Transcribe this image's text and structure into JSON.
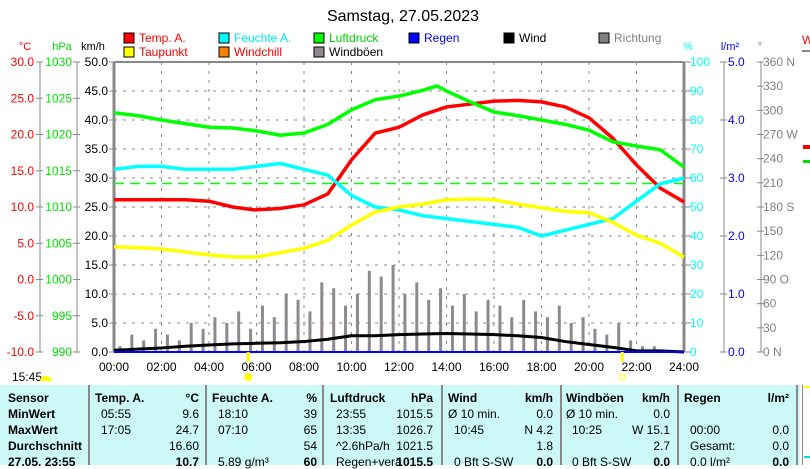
{
  "chart_data": {
    "type": "line",
    "title": "Samstag, 27.05.2023",
    "x_ticks": [
      "00:00",
      "02:00",
      "04:00",
      "06:00",
      "08:00",
      "10:00",
      "12:00",
      "14:00",
      "16:00",
      "18:00",
      "20:00",
      "22:00",
      "24:00"
    ],
    "x_range_hours": [
      0,
      24
    ],
    "axes": {
      "temp": {
        "unit": "°C",
        "range": [
          -10,
          30
        ],
        "ticks": [
          "30.0",
          "25.0",
          "20.0",
          "15.0",
          "10.0",
          "5.0",
          "0.0",
          "-5.0",
          "-10.0"
        ],
        "color": "#ff0000"
      },
      "pressure": {
        "unit": "hPa",
        "range": [
          990,
          1030
        ],
        "ticks": [
          "1030",
          "1025",
          "1020",
          "1015",
          "1010",
          "1005",
          "1000",
          "995",
          "990"
        ],
        "color": "#00e000"
      },
      "wind": {
        "unit": "km/h",
        "range": [
          0,
          50
        ],
        "ticks": [
          "50.0",
          "45.0",
          "40.0",
          "35.0",
          "30.0",
          "25.0",
          "20.0",
          "15.0",
          "10.0",
          "5.0",
          "0.0"
        ],
        "color": "#000000"
      },
      "humidity": {
        "unit": "%",
        "range": [
          0,
          100
        ],
        "ticks": [
          "100",
          "90",
          "80",
          "70",
          "60",
          "50",
          "40",
          "30",
          "20",
          "10",
          "0"
        ],
        "color": "#00ffff"
      },
      "rain": {
        "unit": "l/m²",
        "range": [
          0,
          5
        ],
        "ticks": [
          "5.0",
          "4.0",
          "3.0",
          "2.0",
          "1.0",
          "0.0"
        ],
        "color": "#0000ff"
      },
      "direction": {
        "unit": "°",
        "range": [
          0,
          360
        ],
        "ticks": [
          "360 N",
          "330",
          "300",
          "270 W",
          "240",
          "210",
          "180 S",
          "150",
          "120",
          "90 O",
          "60",
          "30",
          "0 N"
        ],
        "color": "#808080"
      }
    },
    "legend": [
      {
        "label": "Temp. A.",
        "color": "#ff0000",
        "text_color": "#ff0000"
      },
      {
        "label": "Feuchte A.",
        "color": "#00ffff",
        "text_color": "#00e8e8"
      },
      {
        "label": "Luftdruck",
        "color": "#00ff00",
        "text_color": "#00d000"
      },
      {
        "label": "Regen",
        "color": "#0000ff",
        "text_color": "#0000ff"
      },
      {
        "label": "Wind",
        "color": "#000000",
        "text_color": "#000000"
      },
      {
        "label": "Richtung",
        "color": "#808080",
        "text_color": "#808080"
      },
      {
        "label": "Taupunkt",
        "color": "#ffff00",
        "text_color": "#ff0000"
      },
      {
        "label": "Windchill",
        "color": "#ff8000",
        "text_color": "#ff0000"
      },
      {
        "label": "Windböen",
        "color": "#908890",
        "text_color": "#000000"
      }
    ],
    "series": [
      {
        "name": "Temp. A.",
        "axis": "temp",
        "color": "#ff0000",
        "x_hours": [
          0,
          1,
          2,
          3,
          4,
          5,
          5.9,
          7,
          8,
          9,
          10,
          11,
          12,
          13,
          14,
          15,
          16,
          17,
          18,
          19,
          20,
          21,
          22,
          23,
          24
        ],
        "values": [
          11.0,
          11.0,
          11.0,
          11.0,
          10.8,
          10.0,
          9.6,
          9.8,
          10.3,
          11.8,
          16.5,
          20.2,
          21.0,
          22.7,
          23.8,
          24.2,
          24.6,
          24.7,
          24.5,
          23.8,
          22.3,
          19.5,
          15.8,
          12.6,
          10.7
        ]
      },
      {
        "name": "Feuchte A.",
        "axis": "humidity",
        "color": "#00ffff",
        "x_hours": [
          0,
          1,
          2,
          3,
          4,
          5,
          6,
          7,
          8,
          9,
          10,
          11,
          12,
          13,
          14,
          15,
          16,
          17,
          18,
          19,
          20,
          21,
          22,
          23,
          24
        ],
        "values": [
          63,
          64,
          64,
          63,
          63,
          63,
          64,
          65,
          63,
          61,
          54,
          50,
          49,
          47,
          46,
          45,
          44,
          43,
          40,
          42,
          44,
          46,
          52,
          58,
          60
        ]
      },
      {
        "name": "Luftdruck",
        "axis": "pressure",
        "color": "#00ff00",
        "x_hours": [
          0,
          1,
          2,
          3,
          4,
          5,
          6,
          7,
          8,
          9,
          10,
          11,
          12,
          13,
          13.6,
          14,
          15,
          16,
          17,
          18,
          19,
          20,
          21,
          22,
          23,
          24
        ],
        "values": [
          1023.0,
          1022.6,
          1022.0,
          1021.5,
          1021.0,
          1020.9,
          1020.5,
          1019.9,
          1020.2,
          1021.4,
          1023.4,
          1024.8,
          1025.3,
          1026.1,
          1026.7,
          1026.0,
          1024.5,
          1023.1,
          1022.6,
          1022.0,
          1021.4,
          1020.6,
          1019.0,
          1018.4,
          1017.9,
          1015.5
        ]
      },
      {
        "name": "Taupunkt",
        "axis": "temp",
        "color": "#ffff00",
        "x_hours": [
          0,
          1,
          2,
          3,
          4,
          5,
          6,
          7,
          8,
          9,
          10,
          11,
          12,
          13,
          14,
          15,
          16,
          17,
          18,
          19,
          20,
          21,
          22,
          23,
          24
        ],
        "values": [
          4.5,
          4.4,
          4.2,
          3.8,
          3.4,
          3.1,
          3.1,
          3.7,
          4.3,
          5.4,
          7.5,
          9.3,
          10.0,
          10.4,
          11.0,
          11.1,
          11.0,
          10.4,
          9.9,
          9.4,
          9.2,
          7.9,
          6.1,
          5.0,
          3.1
        ]
      },
      {
        "name": "Wind",
        "axis": "wind",
        "color": "#000000",
        "x_hours": [
          0,
          1,
          2,
          3,
          4,
          5,
          6,
          7,
          8,
          9,
          10,
          11,
          12,
          13,
          14,
          15,
          16,
          17,
          18,
          19,
          20,
          21,
          22,
          23,
          24
        ],
        "values": [
          0.3,
          0.5,
          0.7,
          1.0,
          1.2,
          1.4,
          1.5,
          1.6,
          1.8,
          2.2,
          2.8,
          2.8,
          3.0,
          3.1,
          3.2,
          3.1,
          3.0,
          2.8,
          2.5,
          1.8,
          1.3,
          0.8,
          0.2,
          0.2,
          0.0
        ]
      }
    ],
    "gusts": {
      "name": "Windböen",
      "axis": "wind",
      "color": "#908890",
      "step_hours": 0.5,
      "values": [
        1,
        3,
        2,
        4,
        3,
        2,
        5,
        4,
        6,
        5,
        7,
        4,
        8,
        6,
        10,
        9,
        7,
        12,
        11,
        8,
        10,
        14,
        13,
        15,
        10,
        12,
        9,
        11,
        8,
        10,
        7,
        9,
        8,
        6,
        9,
        7,
        6,
        8,
        5,
        6,
        4,
        3,
        5,
        2,
        1,
        1,
        0,
        0
      ]
    },
    "ref_line": {
      "label": "1013 hPa",
      "axis": "pressure",
      "value": 1013.25,
      "color": "#00ff00"
    },
    "rain_values": {
      "axis": "rain",
      "value": 0.0
    },
    "sunrise_hours": 5.65,
    "sunset_hours": 21.4
  },
  "sun_label": "15:45",
  "table": {
    "headers": {
      "sensor": "Sensor",
      "temp": "Temp. A.",
      "temp_unit": "°C",
      "hum": "Feuchte A.",
      "hum_unit": "%",
      "press": "Luftdruck",
      "press_unit": "hPa",
      "wind": "Wind",
      "wind_unit": "km/h",
      "gust": "Windböen",
      "gust_unit": "km/h",
      "rain": "Regen",
      "rain_unit": "l/m²"
    },
    "rows": [
      {
        "label": "MinWert",
        "temp_time": "05:55",
        "temp": "9.6",
        "hum_time": "18:10",
        "hum": "39",
        "press_time": "23:55",
        "press": "1015.5",
        "wind_time": "Ø 10 min.",
        "wind": "0.0",
        "gust_time": "Ø 10 min.",
        "gust": "0.0",
        "rain_time": "",
        "rain": ""
      },
      {
        "label": "MaxWert",
        "temp_time": "17:05",
        "temp": "24.7",
        "hum_time": "07:10",
        "hum": "65",
        "press_time": "13:35",
        "press": "1026.7",
        "wind_time": "10:45",
        "wind": "N 4.2",
        "gust_time": "10:25",
        "gust": "W 15.1",
        "rain_time": "00:00",
        "rain": "0.0"
      },
      {
        "label": "Durchschnitt",
        "temp_time": "",
        "temp": "16.60",
        "hum_time": "",
        "hum": "54",
        "press_time": "^2.6hPa/h",
        "press": "1021.5",
        "wind_time": "",
        "wind": "1.8",
        "gust_time": "",
        "gust": "2.7",
        "rain_time": "Gesamt:",
        "rain": "0.0"
      },
      {
        "label": "27.05. 23:55",
        "temp_time": "",
        "temp": "10.7",
        "hum_time": "5.89 g/m³",
        "hum": "60",
        "press_time": "Regen+verä",
        "press": "1015.5",
        "wind_time": "0 Bft S-SW",
        "wind": "0.0",
        "gust_time": "0 Bft S-SW",
        "gust": "0.0",
        "rain_time": "0.0 l/m²",
        "rain": "0.0"
      }
    ]
  },
  "side_panel": {
    "label": "W"
  }
}
